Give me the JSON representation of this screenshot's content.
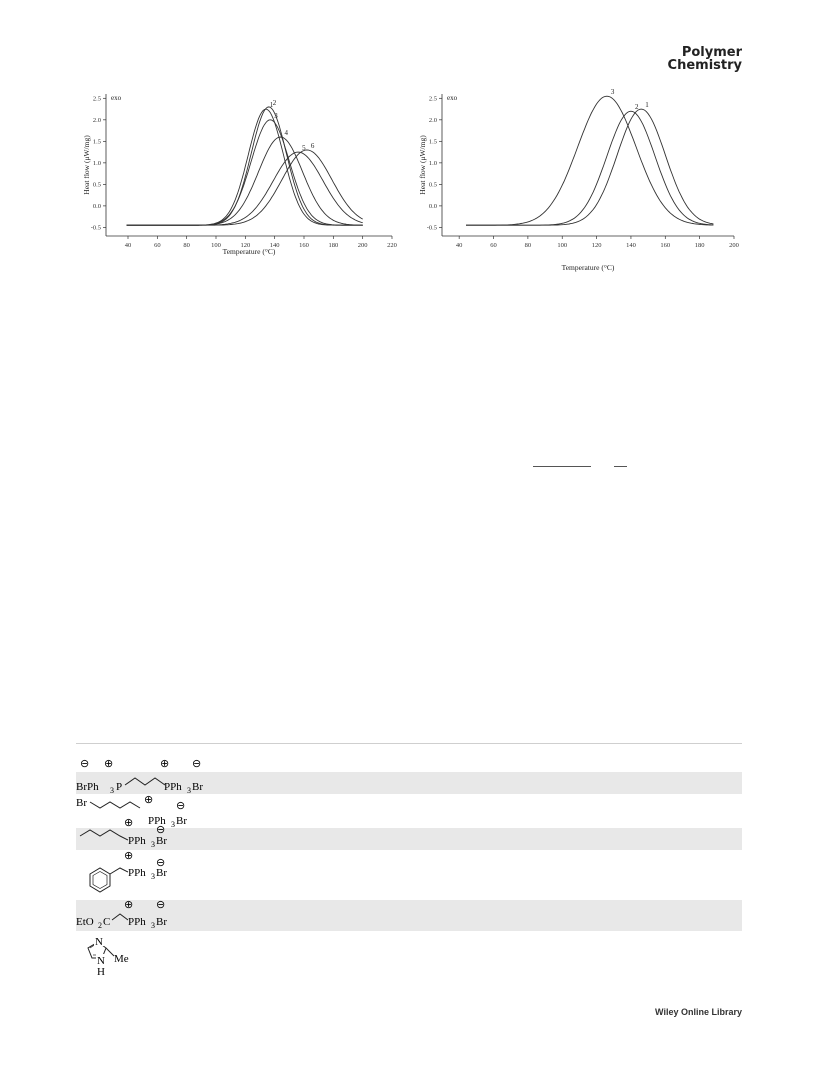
{
  "header": {
    "journal_line1": "Polymer",
    "journal_line2": "Chemistry"
  },
  "chart_data": [
    {
      "type": "line",
      "ylabel": "Heat flow (μW/mg)",
      "xlabel": "Temperature (°C)",
      "corner_label": "exo",
      "xlim": [
        25,
        220
      ],
      "ylim": [
        -0.7,
        2.6
      ],
      "x_ticks": [
        "40",
        "60",
        "80",
        "100",
        "120",
        "140",
        "160",
        "180",
        "200",
        "220"
      ],
      "y_ticks": [
        "-0.5",
        "0.0",
        "0.5",
        "1.0",
        "1.5",
        "2.0",
        "2.5"
      ],
      "series": [
        {
          "name": "1",
          "peak_x": 134,
          "peak_y": 2.25,
          "width": 12
        },
        {
          "name": "2",
          "peak_x": 136,
          "peak_y": 2.3,
          "width": 12
        },
        {
          "name": "3",
          "peak_x": 137,
          "peak_y": 2.0,
          "width": 13
        },
        {
          "name": "4",
          "peak_x": 144,
          "peak_y": 1.6,
          "width": 15
        },
        {
          "name": "5",
          "peak_x": 156,
          "peak_y": 1.25,
          "width": 17
        },
        {
          "name": "6",
          "peak_x": 162,
          "peak_y": 1.3,
          "width": 17
        }
      ]
    },
    {
      "type": "line",
      "ylabel": "Heat flow (μW/mg)",
      "xlabel": "Temperature (°C)",
      "corner_label": "exo",
      "xlim": [
        30,
        200
      ],
      "ylim": [
        -0.7,
        2.6
      ],
      "x_ticks": [
        "40",
        "60",
        "80",
        "100",
        "120",
        "140",
        "160",
        "180",
        "200"
      ],
      "y_ticks": [
        "-0.5",
        "0.0",
        "0.5",
        "1.0",
        "1.5",
        "2.0",
        "2.5"
      ],
      "series": [
        {
          "name": "1",
          "peak_x": 146,
          "peak_y": 2.25,
          "width": 14
        },
        {
          "name": "2",
          "peak_x": 140,
          "peak_y": 2.2,
          "width": 14
        },
        {
          "name": "3",
          "peak_x": 126,
          "peak_y": 2.55,
          "width": 17
        }
      ]
    }
  ],
  "structures": [
    {
      "labels": [
        "BrPh",
        "3",
        "P",
        "PPh",
        "3",
        "Br"
      ]
    },
    {
      "labels": [
        "Br",
        "PPh",
        "3",
        "Br"
      ]
    },
    {
      "labels": [
        "PPh",
        "3",
        "Br"
      ]
    },
    {
      "labels": [
        "PPh",
        "3",
        "Br"
      ]
    },
    {
      "labels": [
        "EtO",
        "2",
        "C",
        "PPh",
        "3",
        "Br"
      ]
    },
    {
      "labels": [
        "N",
        "N",
        "H",
        "Me"
      ]
    }
  ],
  "footer": {
    "text": "Wiley Online Library"
  }
}
